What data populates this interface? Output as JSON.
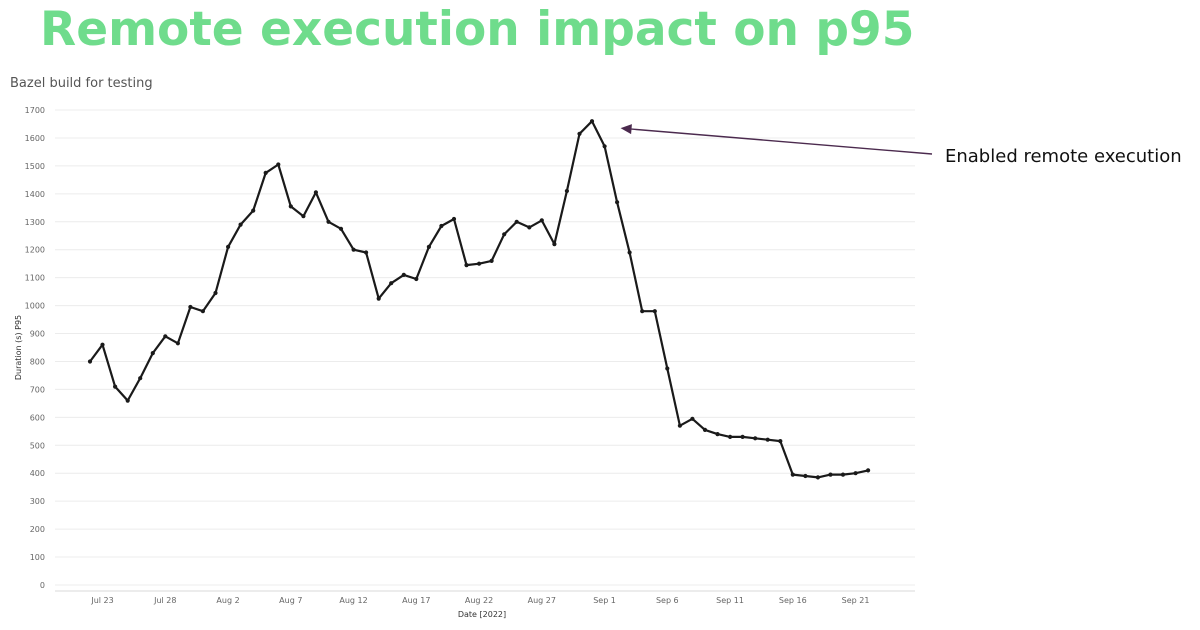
{
  "slide": {
    "title": "Remote execution impact on p95",
    "title_color": "#6fdc8c"
  },
  "chart_data": {
    "type": "line",
    "subtitle": "Bazel build for testing",
    "xlabel": "Date [2022]",
    "ylabel": "Duration (s) P95",
    "ylim": [
      0,
      1700
    ],
    "yticks": [
      0,
      100,
      200,
      300,
      400,
      500,
      600,
      700,
      800,
      900,
      1000,
      1100,
      1200,
      1300,
      1400,
      1500,
      1600,
      1700
    ],
    "x_start": "2022-07-22",
    "xticks": [
      {
        "label": "Jul 23",
        "date": "2022-07-23"
      },
      {
        "label": "Jul 28",
        "date": "2022-07-28"
      },
      {
        "label": "Aug 2",
        "date": "2022-08-02"
      },
      {
        "label": "Aug 7",
        "date": "2022-08-07"
      },
      {
        "label": "Aug 12",
        "date": "2022-08-12"
      },
      {
        "label": "Aug 17",
        "date": "2022-08-17"
      },
      {
        "label": "Aug 22",
        "date": "2022-08-22"
      },
      {
        "label": "Aug 27",
        "date": "2022-08-27"
      },
      {
        "label": "Sep 1",
        "date": "2022-09-01"
      },
      {
        "label": "Sep 6",
        "date": "2022-09-06"
      },
      {
        "label": "Sep 11",
        "date": "2022-09-11"
      },
      {
        "label": "Sep 16",
        "date": "2022-09-16"
      },
      {
        "label": "Sep 21",
        "date": "2022-09-21"
      }
    ],
    "grid": true,
    "line_color": "#1a1a1a",
    "series": [
      {
        "values": [
          800,
          860,
          710,
          660,
          740,
          830,
          890,
          865,
          995,
          980,
          1045,
          1210,
          1290,
          1340,
          1475,
          1505,
          1355,
          1320,
          1405,
          1300,
          1275,
          1200,
          1190,
          1025,
          1080,
          1110,
          1095,
          1210,
          1285,
          1310,
          1145,
          1150,
          1160,
          1255,
          1300,
          1280,
          1305,
          1220,
          1410,
          1615,
          1660,
          1570,
          1370,
          1190,
          980,
          980,
          775,
          570,
          595,
          555,
          540,
          530,
          530,
          525,
          520,
          515,
          395,
          390,
          385,
          395,
          395,
          400,
          410
        ]
      }
    ],
    "annotation": {
      "text": "Enabled remote execution",
      "date": "2022-09-01",
      "value": 1660,
      "arrow_color": "#4b2a4e"
    }
  }
}
